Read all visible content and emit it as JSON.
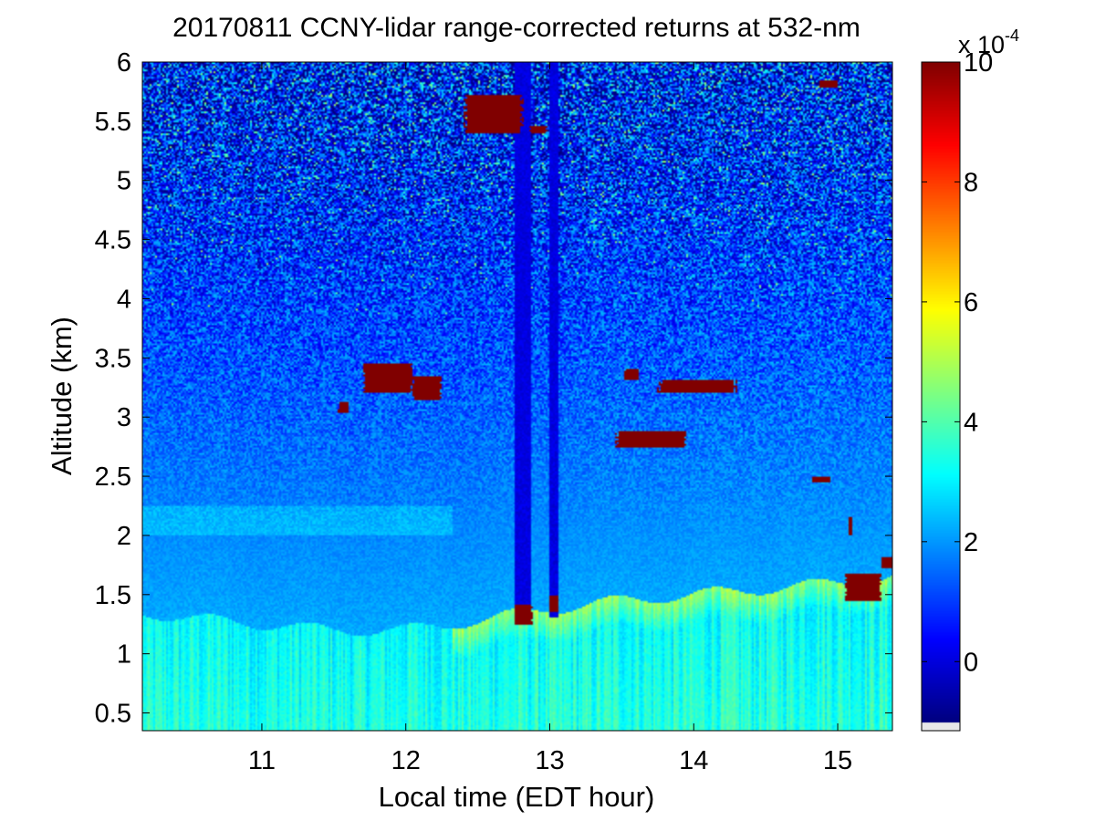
{
  "chart_data": {
    "type": "heatmap",
    "title": "20170811 CCNY-lidar range-corrected returns at 532-nm",
    "xlabel": "Local time (EDT hour)",
    "ylabel": "Altitude (km)",
    "xlim": [
      10.17,
      15.38
    ],
    "ylim": [
      0.35,
      6.0
    ],
    "x_ticks": [
      "11",
      "12",
      "13",
      "14",
      "15"
    ],
    "y_ticks": [
      "0.5",
      "1",
      "1.5",
      "2",
      "2.5",
      "3",
      "3.5",
      "4",
      "4.5",
      "5",
      "5.5",
      "6"
    ],
    "colorbar": {
      "colormap": "jet",
      "range": [
        -1,
        10
      ],
      "ticks": [
        "0",
        "2",
        "4",
        "6",
        "8",
        "10"
      ],
      "multiplier": "x 10",
      "multiplier_exponent": "-4",
      "out_of_range_color": "#e8e8e8"
    },
    "features": {
      "mixed_layer_top_km": [
        [
          10.17,
          1.35
        ],
        [
          10.5,
          1.3
        ],
        [
          11.0,
          1.25
        ],
        [
          11.5,
          1.2
        ],
        [
          12.0,
          1.2
        ],
        [
          12.33,
          1.25
        ],
        [
          12.6,
          1.3
        ],
        [
          13.0,
          1.38
        ],
        [
          13.5,
          1.45
        ],
        [
          14.0,
          1.5
        ],
        [
          14.5,
          1.55
        ],
        [
          15.0,
          1.6
        ],
        [
          15.38,
          1.65
        ]
      ],
      "residual_layer_km": [
        2.0,
        2.25
      ],
      "instrument_gap_hour": 12.33,
      "clouds": [
        {
          "x0": 11.7,
          "x1": 12.05,
          "y0": 3.2,
          "y1": 3.45
        },
        {
          "x0": 12.05,
          "x1": 12.25,
          "y0": 3.15,
          "y1": 3.35
        },
        {
          "x0": 11.53,
          "x1": 11.6,
          "y0": 3.03,
          "y1": 3.13
        },
        {
          "x0": 12.4,
          "x1": 12.82,
          "y0": 5.4,
          "y1": 5.72
        },
        {
          "x0": 12.86,
          "x1": 12.98,
          "y0": 5.4,
          "y1": 5.46
        },
        {
          "x0": 13.52,
          "x1": 13.62,
          "y0": 3.32,
          "y1": 3.4
        },
        {
          "x0": 13.75,
          "x1": 14.3,
          "y0": 3.2,
          "y1": 3.32
        },
        {
          "x0": 13.45,
          "x1": 13.95,
          "y0": 2.75,
          "y1": 2.88
        },
        {
          "x0": 14.87,
          "x1": 15.0,
          "y0": 5.78,
          "y1": 5.85
        },
        {
          "x0": 15.05,
          "x1": 15.3,
          "y0": 1.45,
          "y1": 1.68
        },
        {
          "x0": 15.3,
          "x1": 15.38,
          "y0": 1.72,
          "y1": 1.82
        },
        {
          "x0": 15.07,
          "x1": 15.1,
          "y0": 2.0,
          "y1": 2.15
        },
        {
          "x0": 12.75,
          "x1": 12.88,
          "y0": 1.25,
          "y1": 1.42
        },
        {
          "x0": 13.0,
          "x1": 13.06,
          "y0": 1.35,
          "y1": 1.5
        },
        {
          "x0": 14.82,
          "x1": 14.95,
          "y0": 2.45,
          "y1": 2.5
        }
      ]
    }
  }
}
